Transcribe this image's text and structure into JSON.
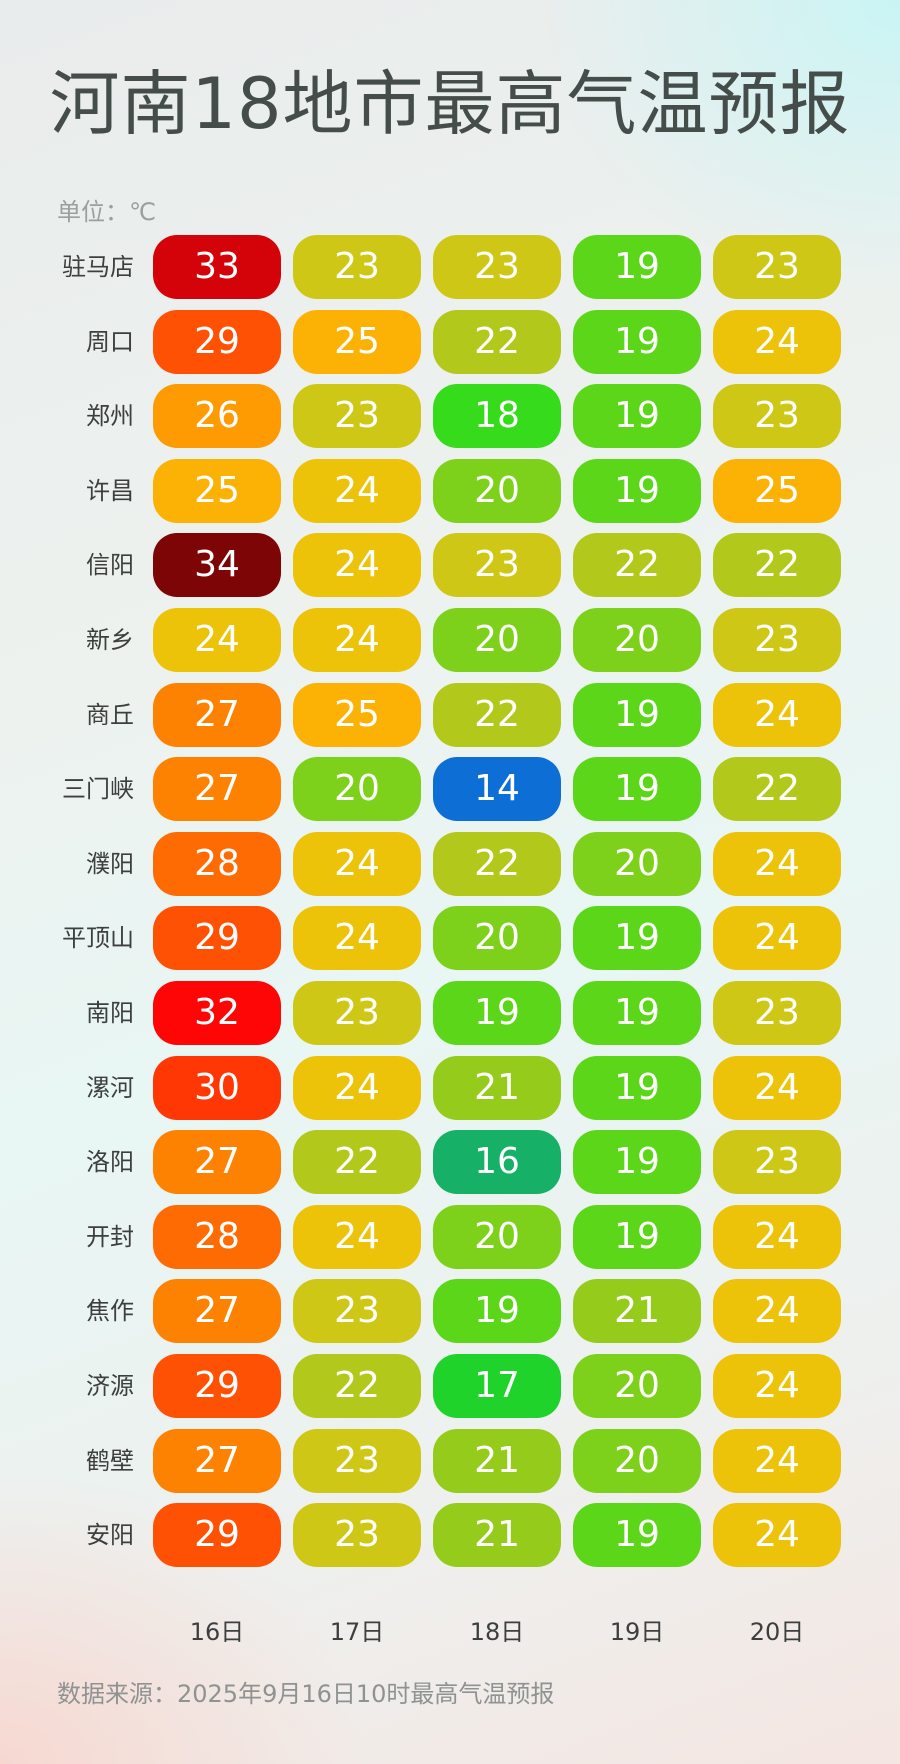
{
  "title": "河南18地市最高气温预报",
  "unit": "单位：℃",
  "source": "数据来源：2025年9月16日10时最高气温预报",
  "chart_data": {
    "type": "heatmap",
    "x": [
      "16日",
      "17日",
      "18日",
      "19日",
      "20日"
    ],
    "y": [
      "驻马店",
      "周口",
      "郑州",
      "许昌",
      "信阳",
      "新乡",
      "商丘",
      "三门峡",
      "濮阳",
      "平顶山",
      "南阳",
      "漯河",
      "洛阳",
      "开封",
      "焦作",
      "济源",
      "鹤壁",
      "安阳"
    ],
    "values": [
      [
        33,
        23,
        23,
        19,
        23
      ],
      [
        29,
        25,
        22,
        19,
        24
      ],
      [
        26,
        23,
        18,
        19,
        23
      ],
      [
        25,
        24,
        20,
        19,
        25
      ],
      [
        34,
        24,
        23,
        22,
        22
      ],
      [
        24,
        24,
        20,
        20,
        23
      ],
      [
        27,
        25,
        22,
        19,
        24
      ],
      [
        27,
        20,
        14,
        19,
        22
      ],
      [
        28,
        24,
        22,
        20,
        24
      ],
      [
        29,
        24,
        20,
        19,
        24
      ],
      [
        32,
        23,
        19,
        19,
        23
      ],
      [
        30,
        24,
        21,
        19,
        24
      ],
      [
        27,
        22,
        16,
        19,
        23
      ],
      [
        28,
        24,
        20,
        19,
        24
      ],
      [
        27,
        23,
        19,
        21,
        24
      ],
      [
        29,
        22,
        17,
        20,
        24
      ],
      [
        27,
        23,
        21,
        20,
        24
      ],
      [
        29,
        23,
        21,
        19,
        24
      ]
    ],
    "color_scale": {
      "14": "#0d6fd6",
      "16": "#17b067",
      "17": "#1fd32a",
      "18": "#36dc1b",
      "19": "#5bd619",
      "20": "#7dd11a",
      "21": "#95cc1b",
      "22": "#b2c81a",
      "23": "#cfc716",
      "24": "#ecc309",
      "25": "#fcb205",
      "26": "#fe9a02",
      "27": "#fe8202",
      "28": "#ff6b03",
      "29": "#ff5103",
      "30": "#fe3704",
      "32": "#fe0606",
      "33": "#d4030a",
      "34": "#7d0505"
    }
  }
}
